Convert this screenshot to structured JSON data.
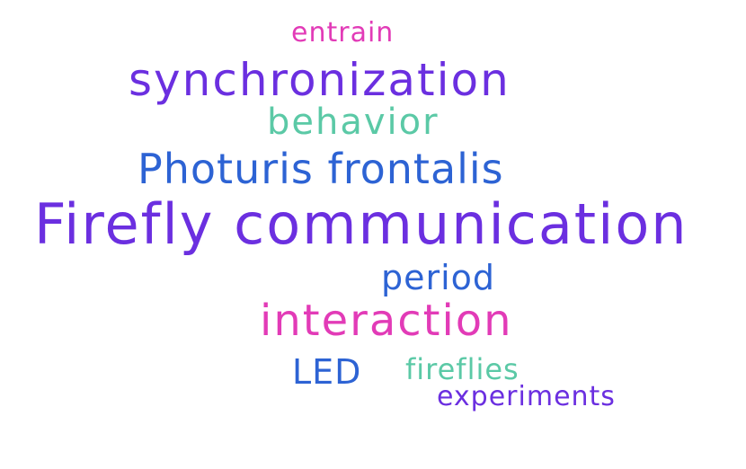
{
  "colors": {
    "purple": "#6b2fe0",
    "blue": "#2d63d4",
    "pink": "#e23bb7",
    "teal": "#5bc9a6"
  },
  "words": {
    "entrain": {
      "text": "entrain",
      "color": "#e23bb7"
    },
    "synchronization": {
      "text": "synchronization",
      "color": "#6b2fe0"
    },
    "behavior": {
      "text": "behavior",
      "color": "#5bc9a6"
    },
    "photuris": {
      "text": "Photuris frontalis",
      "color": "#2d63d4"
    },
    "firefly_communication": {
      "text": "Firefly communication",
      "color": "#6b2fe0"
    },
    "period": {
      "text": "period",
      "color": "#2d63d4"
    },
    "interaction": {
      "text": "interaction",
      "color": "#e23bb7"
    },
    "led": {
      "text": "LED",
      "color": "#2d63d4"
    },
    "fireflies": {
      "text": "fireflies",
      "color": "#5bc9a6"
    },
    "experiments": {
      "text": "experiments",
      "color": "#6b2fe0"
    }
  }
}
